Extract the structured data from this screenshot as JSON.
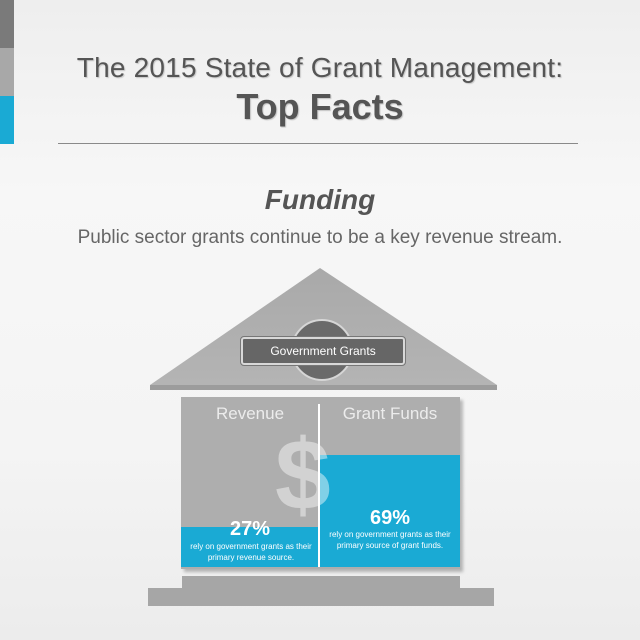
{
  "header": {
    "title_line1": "The 2015 State of Grant Management:",
    "title_line2": "Top Facts"
  },
  "section": {
    "heading": "Funding",
    "subheading": "Public sector grants continue to be a key revenue stream."
  },
  "house": {
    "plaque_label": "Government Grants",
    "left": {
      "label": "Revenue",
      "percent": "27%",
      "fill_fraction": 0.27,
      "description": "rely on government grants as their primary revenue source."
    },
    "right": {
      "label": "Grant Funds",
      "percent": "69%",
      "fill_fraction": 0.69,
      "description": "rely on government grants as their primary source of grant funds."
    },
    "watermark_symbol": "$"
  },
  "colors": {
    "accent": "#1aaad4",
    "house_gray": "#aeaeae",
    "text_gray": "#555555"
  }
}
